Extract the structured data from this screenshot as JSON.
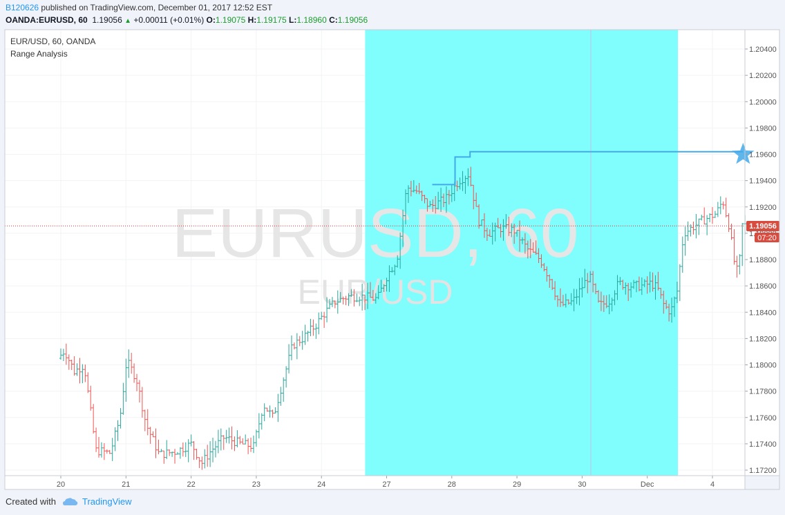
{
  "header": {
    "chart_id": "B120626",
    "published_text": " published on TradingView.com, December 01, 2017 12:52 EST",
    "symbol": "OANDA:EURUSD, 60",
    "last": "1.19056",
    "change": "+0.00011 (+0.01%)",
    "o_label": "O:",
    "o_value": "1.19075",
    "h_label": "H:",
    "h_value": "1.19175",
    "l_label": "L:",
    "l_value": "1.18960",
    "c_label": "C:",
    "c_value": "1.19056"
  },
  "pane": {
    "title": "EUR/USD, 60, OANDA",
    "indicator": "Range Analysis",
    "watermark_main": "EURUSD, 60",
    "watermark_sub": "EUR/USD"
  },
  "price_badge": "1.19056",
  "time_badge": "07:20",
  "footer": {
    "created_with": "Created with",
    "brand": "TradingView"
  },
  "colors": {
    "up": "#26a69a",
    "down": "#ef5350",
    "range_fill": "#80fdfd",
    "range_line": "#43a9ea",
    "price_line": "#d32f2f",
    "badge_bg": "#d84b3f"
  },
  "icons": {
    "star": "star-icon",
    "logo": "cloud-logo-icon"
  },
  "chart_data": {
    "type": "ohlc",
    "title": "EUR/USD, 60, OANDA",
    "ylim": [
      1.171,
      1.2055
    ],
    "yticks": [
      "1.20400",
      "1.20200",
      "1.20000",
      "1.19800",
      "1.19600",
      "1.19400",
      "1.19200",
      "1.19000",
      "1.18800",
      "1.18600",
      "1.18400",
      "1.18200",
      "1.18000",
      "1.17800",
      "1.17600",
      "1.17400",
      "1.17200"
    ],
    "xticks": [
      {
        "label": "20",
        "day": 1
      },
      {
        "label": "21",
        "day": 2
      },
      {
        "label": "22",
        "day": 3
      },
      {
        "label": "23",
        "day": 4
      },
      {
        "label": "24",
        "day": 5
      },
      {
        "label": "27",
        "day": 6
      },
      {
        "label": "28",
        "day": 7
      },
      {
        "label": "29",
        "day": 8
      },
      {
        "label": "30",
        "day": 9
      },
      {
        "label": "Dec",
        "day": 10
      },
      {
        "label": "4",
        "day": 11
      }
    ],
    "last_price": 1.19056,
    "range_highlight": {
      "start_day": 5.67,
      "end_day": 10.47,
      "level": 1.1962,
      "marker_day": 10.47
    },
    "keypoints": [
      [
        0.0,
        1.1805
      ],
      [
        0.1,
        1.1811
      ],
      [
        0.25,
        1.1795
      ],
      [
        0.4,
        1.18
      ],
      [
        0.58,
        1.1735
      ],
      [
        0.8,
        1.1733
      ],
      [
        0.95,
        1.176
      ],
      [
        1.05,
        1.1803
      ],
      [
        1.2,
        1.179
      ],
      [
        1.35,
        1.1755
      ],
      [
        1.55,
        1.1732
      ],
      [
        1.8,
        1.1734
      ],
      [
        2.05,
        1.174
      ],
      [
        2.2,
        1.1725
      ],
      [
        2.35,
        1.1735
      ],
      [
        2.55,
        1.1745
      ],
      [
        2.8,
        1.174
      ],
      [
        3.0,
        1.1738
      ],
      [
        3.15,
        1.177
      ],
      [
        3.3,
        1.176
      ],
      [
        3.45,
        1.1788
      ],
      [
        3.6,
        1.1815
      ],
      [
        3.75,
        1.182
      ],
      [
        3.95,
        1.183
      ],
      [
        4.1,
        1.184
      ],
      [
        4.25,
        1.1848
      ],
      [
        4.45,
        1.1852
      ],
      [
        4.65,
        1.1852
      ],
      [
        4.9,
        1.185
      ],
      [
        5.05,
        1.1868
      ],
      [
        5.2,
        1.188
      ],
      [
        5.35,
        1.1935
      ],
      [
        5.5,
        1.1932
      ],
      [
        5.7,
        1.192
      ],
      [
        5.95,
        1.1926
      ],
      [
        6.15,
        1.194
      ],
      [
        6.3,
        1.1945
      ],
      [
        6.45,
        1.191
      ],
      [
        6.6,
        1.19
      ],
      [
        6.8,
        1.1904
      ],
      [
        7.0,
        1.1902
      ],
      [
        7.2,
        1.1888
      ],
      [
        7.4,
        1.188
      ],
      [
        7.55,
        1.1865
      ],
      [
        7.7,
        1.1845
      ],
      [
        7.9,
        1.1848
      ],
      [
        8.05,
        1.186
      ],
      [
        8.15,
        1.1868
      ],
      [
        8.3,
        1.1845
      ],
      [
        8.45,
        1.1848
      ],
      [
        8.6,
        1.1862
      ],
      [
        8.8,
        1.186
      ],
      [
        8.95,
        1.186
      ],
      [
        9.1,
        1.1862
      ],
      [
        9.2,
        1.1858
      ],
      [
        9.3,
        1.1845
      ],
      [
        9.4,
        1.184
      ],
      [
        9.5,
        1.1856
      ],
      [
        9.6,
        1.19
      ],
      [
        9.75,
        1.1905
      ],
      [
        9.9,
        1.191
      ],
      [
        10.1,
        1.1915
      ],
      [
        10.2,
        1.1925
      ],
      [
        10.3,
        1.1905
      ],
      [
        10.4,
        1.187
      ],
      [
        10.45,
        1.1875
      ],
      [
        10.5,
        1.1906
      ]
    ]
  }
}
